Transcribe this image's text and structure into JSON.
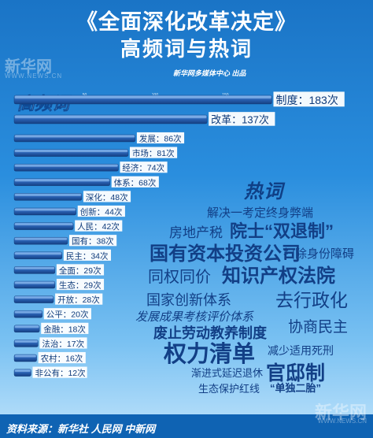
{
  "header": {
    "title_line1": "《全面深化改革决定》",
    "title_line2": "高频词与热词",
    "credit": "新华网多媒体中心 出品"
  },
  "watermark": {
    "name": "新华网",
    "url": "WWW.NEWS.CN"
  },
  "footer": {
    "source": "资料来源：新华社  人民网  中新网"
  },
  "colors": {
    "background_top": "#1a74c6",
    "background_bottom": "#bfe3fb",
    "bar": "#1a4f9c",
    "bar_highlight": "#5f9ee6",
    "cloud_text": "#123f86",
    "label_bg": "#ffffff"
  },
  "chart_data": {
    "type": "bar",
    "orientation": "horizontal",
    "title": "高频词",
    "xlim": [
      0,
      190
    ],
    "ticks": [
      50,
      100,
      150
    ],
    "unit": "次",
    "categories": [
      "制度",
      "改革",
      "发展",
      "市场",
      "经济",
      "体系",
      "深化",
      "创新",
      "人民",
      "国有",
      "民主",
      "全面",
      "生态",
      "开放",
      "公平",
      "金融",
      "法治",
      "农村",
      "非公有"
    ],
    "values": [
      183,
      137,
      86,
      81,
      74,
      68,
      48,
      44,
      42,
      38,
      34,
      29,
      29,
      28,
      20,
      18,
      17,
      16,
      12
    ],
    "labels": [
      "制度：183次",
      "改革：137次",
      "发展：86次",
      "市场：81次",
      "经济：74次",
      "体系：68次",
      "深化：48次",
      "创新：44次",
      "人民：42次",
      "国有：38次",
      "民主：34次",
      "全面：29次",
      "生态：29次",
      "开放：28次",
      "公平：20次",
      "金融：18次",
      "法治：17次",
      "农村：16次",
      "非公有：12次"
    ]
  },
  "hot_words": {
    "title": "热词",
    "words": [
      "解决一考定终身弊端",
      "房地产税",
      "院士“双退制”",
      "国有资本投资公司",
      "扫除身份障碍",
      "同权同价",
      "知识产权法院",
      "国家创新体系",
      "去行政化",
      "发展成果考核评价体系",
      "协商民主",
      "废止劳动教养制度",
      "权力清单",
      "减少适用死刑",
      "渐进式延迟退休",
      "官邸制",
      "生态保护红线",
      "“单独二胎”"
    ]
  }
}
